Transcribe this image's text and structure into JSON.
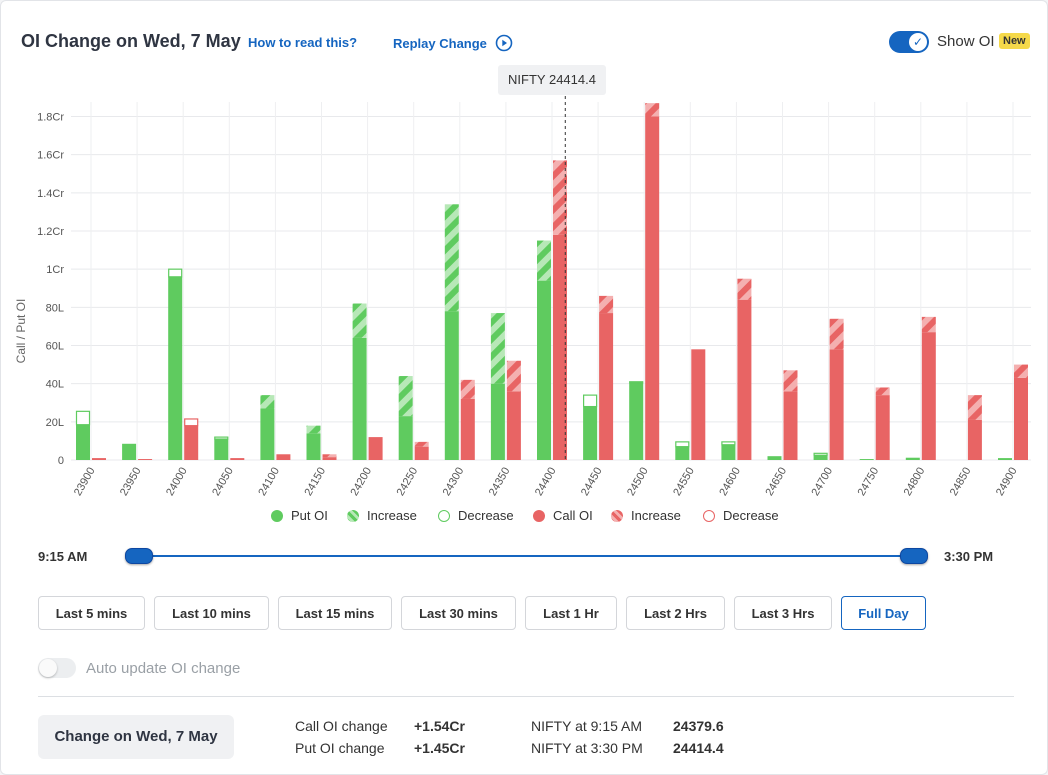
{
  "header": {
    "title": "OI Change on Wed, 7 May",
    "how_to_read": "How to read this?",
    "replay": "Replay Change",
    "show_oi": "Show OI",
    "new_badge": "New"
  },
  "chart_data": {
    "type": "bar",
    "spot_label": "NIFTY 24414.4",
    "spot_value": 24414.4,
    "ylabel": "Call / Put OI",
    "ylim": [
      0,
      185
    ],
    "yticks": [
      0,
      20,
      40,
      60,
      80,
      100,
      120,
      140,
      160,
      180
    ],
    "ytick_labels": [
      "0",
      "20L",
      "40L",
      "60L",
      "80L",
      "1Cr",
      "1.2Cr",
      "1.4Cr",
      "1.6Cr",
      "1.8Cr"
    ],
    "unit": "Lakh",
    "categories": [
      "23900",
      "23950",
      "24000",
      "24050",
      "24100",
      "24150",
      "24200",
      "24250",
      "24300",
      "24350",
      "24400",
      "24450",
      "24500",
      "24550",
      "24600",
      "24650",
      "24700",
      "24750",
      "24800",
      "24850",
      "24900"
    ],
    "put_oi": [
      18.5,
      8.5,
      96,
      11,
      27,
      14,
      64,
      23,
      78,
      40,
      94,
      28,
      40.5,
      7,
      8,
      2,
      2.5,
      0.5,
      1.2,
      0,
      1
    ],
    "put_increase": [
      0,
      0,
      0,
      0,
      7,
      4,
      18,
      21,
      56,
      37,
      21,
      0,
      0,
      0,
      0,
      0,
      0,
      0,
      0,
      0,
      0
    ],
    "put_decrease": [
      7,
      0,
      4,
      1,
      0,
      0,
      0,
      0,
      0,
      0,
      0,
      6,
      0.5,
      2.5,
      1.5,
      0,
      1,
      0,
      0,
      0,
      0
    ],
    "call_oi": [
      1,
      0.5,
      18,
      1,
      3,
      1.5,
      12,
      7,
      32,
      36,
      118,
      77,
      180,
      58,
      84,
      36,
      58,
      34,
      67,
      21,
      43
    ],
    "call_increase": [
      0,
      0,
      0,
      0,
      0,
      1.5,
      0,
      2.5,
      10,
      16,
      39,
      9,
      7,
      0,
      11,
      11,
      16,
      4,
      8,
      13,
      7
    ],
    "call_decrease": [
      0,
      0,
      3.5,
      0,
      0,
      0,
      0,
      0,
      0,
      0,
      0,
      0,
      0,
      0,
      0,
      0,
      0,
      0,
      0,
      0,
      0
    ],
    "legend": [
      {
        "label": "Put OI",
        "kind": "solid",
        "color": "#5fcb5f"
      },
      {
        "label": "Increase",
        "kind": "hatch",
        "color": "#5fcb5f"
      },
      {
        "label": "Decrease",
        "kind": "outline",
        "color": "#5fcb5f"
      },
      {
        "label": "Call OI",
        "kind": "solid",
        "color": "#e86464"
      },
      {
        "label": "Increase",
        "kind": "hatch",
        "color": "#e86464"
      },
      {
        "label": "Decrease",
        "kind": "outline",
        "color": "#e86464"
      }
    ],
    "colors": {
      "put": "#5fcb5f",
      "call": "#e86464"
    },
    "grid": true
  },
  "slider": {
    "start": "9:15 AM",
    "end": "3:30 PM"
  },
  "ranges": [
    "Last 5 mins",
    "Last 10 mins",
    "Last 15 mins",
    "Last 30 mins",
    "Last 1 Hr",
    "Last 2 Hrs",
    "Last 3 Hrs",
    "Full Day"
  ],
  "active_range": "Full Day",
  "auto_update": "Auto update OI change",
  "summary": {
    "button": "Change on Wed, 7 May",
    "call_label": "Call OI change",
    "call_value": "+1.54Cr",
    "put_label": "Put OI change",
    "put_value": "+1.45Cr",
    "nifty_start_label": "NIFTY at 9:15 AM",
    "nifty_start_value": "24379.6",
    "nifty_end_label": "NIFTY at 3:30 PM",
    "nifty_end_value": "24414.4"
  }
}
